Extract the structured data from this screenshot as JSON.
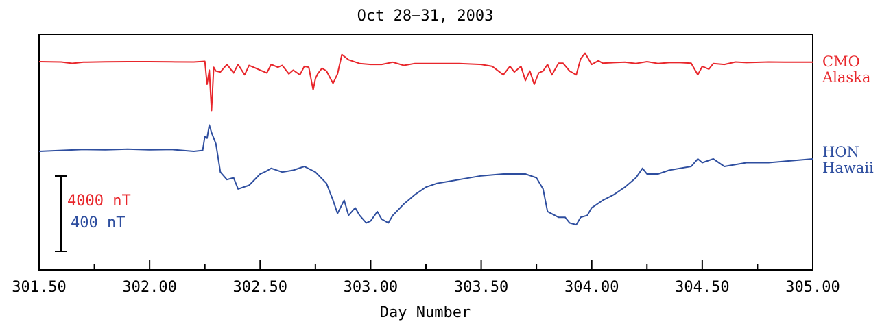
{
  "chart_data": {
    "type": "line",
    "title": "Oct 28−31, 2003",
    "xlabel": "Day Number",
    "ylabel": "",
    "xlim": [
      301.5,
      305.0
    ],
    "x_ticks_major": [
      "301.50",
      "302.00",
      "302.50",
      "303.00",
      "303.50",
      "304.00",
      "304.50",
      "305.00"
    ],
    "x_ticks_minor": [
      301.75,
      302.25,
      302.75,
      303.25,
      303.75,
      304.25,
      304.75
    ],
    "grid": false,
    "scale_bar": {
      "label_cmo": "4000 nT",
      "label_hon": "400 nT"
    },
    "series": [
      {
        "name_line1": "CMO",
        "name_line2": "Alaska",
        "color": "#e8262b",
        "units": "nT (relative)",
        "x": [
          301.5,
          301.6,
          301.65,
          301.7,
          301.8,
          301.9,
          302.0,
          302.1,
          302.2,
          302.25,
          302.26,
          302.27,
          302.28,
          302.29,
          302.3,
          302.32,
          302.35,
          302.38,
          302.4,
          302.43,
          302.45,
          302.48,
          302.5,
          302.53,
          302.55,
          302.58,
          302.6,
          302.63,
          302.65,
          302.68,
          302.7,
          302.72,
          302.74,
          302.75,
          302.76,
          302.78,
          302.8,
          302.83,
          302.85,
          302.87,
          302.9,
          302.95,
          303.0,
          303.05,
          303.1,
          303.15,
          303.2,
          303.3,
          303.4,
          303.5,
          303.55,
          303.6,
          303.63,
          303.65,
          303.68,
          303.7,
          303.72,
          303.74,
          303.76,
          303.78,
          303.8,
          303.82,
          303.85,
          303.87,
          303.9,
          303.93,
          303.95,
          303.97,
          304.0,
          304.03,
          304.05,
          304.1,
          304.15,
          304.2,
          304.25,
          304.3,
          304.35,
          304.4,
          304.45,
          304.48,
          304.5,
          304.53,
          304.55,
          304.6,
          304.65,
          304.7,
          304.8,
          304.9,
          305.0
        ],
        "y": [
          0,
          -20,
          -90,
          -30,
          -10,
          0,
          0,
          -10,
          -20,
          20,
          -1200,
          -450,
          -2600,
          -300,
          -500,
          -550,
          -150,
          -600,
          -150,
          -700,
          -200,
          -350,
          -450,
          -600,
          -150,
          -300,
          -200,
          -650,
          -450,
          -700,
          -250,
          -300,
          -1500,
          -900,
          -650,
          -350,
          -500,
          -1150,
          -650,
          380,
          100,
          -100,
          -150,
          -150,
          -30,
          -200,
          -100,
          -100,
          -100,
          -150,
          -250,
          -700,
          -250,
          -550,
          -250,
          -1000,
          -500,
          -1200,
          -600,
          -500,
          -150,
          -700,
          -80,
          -80,
          -500,
          -700,
          150,
          450,
          -150,
          50,
          -80,
          -50,
          -30,
          -100,
          0,
          -100,
          -50,
          -50,
          -80,
          -700,
          -250,
          -400,
          -100,
          -150,
          -20,
          -50,
          -20,
          -30,
          -30
        ]
      },
      {
        "name_line1": "HON",
        "name_line2": "Hawaii",
        "color": "#2e4e9f",
        "units": "nT (relative)",
        "x": [
          301.5,
          301.6,
          301.7,
          301.8,
          301.9,
          302.0,
          302.1,
          302.2,
          302.24,
          302.25,
          302.26,
          302.27,
          302.28,
          302.3,
          302.32,
          302.35,
          302.38,
          302.4,
          302.45,
          302.5,
          302.52,
          302.55,
          302.6,
          302.65,
          302.7,
          302.75,
          302.8,
          302.83,
          302.85,
          302.88,
          302.9,
          302.93,
          302.95,
          302.98,
          303.0,
          303.03,
          303.05,
          303.08,
          303.1,
          303.15,
          303.2,
          303.25,
          303.3,
          303.35,
          303.4,
          303.5,
          303.6,
          303.7,
          303.75,
          303.78,
          303.8,
          303.85,
          303.88,
          303.9,
          303.93,
          303.95,
          303.98,
          304.0,
          304.05,
          304.1,
          304.15,
          304.2,
          304.23,
          304.25,
          304.3,
          304.35,
          304.4,
          304.45,
          304.48,
          304.5,
          304.55,
          304.6,
          304.7,
          304.8,
          304.9,
          305.0
        ],
        "y": [
          0,
          5,
          10,
          8,
          12,
          8,
          10,
          0,
          5,
          80,
          70,
          140,
          100,
          40,
          -110,
          -150,
          -140,
          -200,
          -180,
          -120,
          -110,
          -90,
          -110,
          -100,
          -80,
          -110,
          -170,
          -260,
          -330,
          -260,
          -340,
          -300,
          -340,
          -380,
          -370,
          -320,
          -360,
          -380,
          -340,
          -280,
          -230,
          -190,
          -170,
          -160,
          -150,
          -130,
          -120,
          -120,
          -140,
          -200,
          -320,
          -350,
          -350,
          -380,
          -390,
          -350,
          -340,
          -300,
          -260,
          -230,
          -190,
          -140,
          -90,
          -120,
          -120,
          -100,
          -90,
          -80,
          -40,
          -60,
          -40,
          -80,
          -60,
          -60,
          -50,
          -40
        ]
      }
    ]
  }
}
